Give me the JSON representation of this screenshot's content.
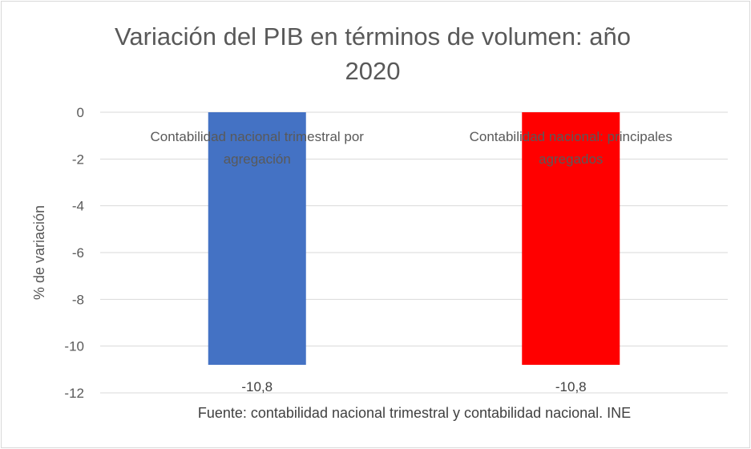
{
  "chart_data": {
    "type": "bar",
    "title": "Variación del PIB en términos de volumen: año 2020",
    "title_lines": [
      "Variación del PIB en términos de volumen: año",
      "2020"
    ],
    "ylabel": "% de variación",
    "xlabel": "",
    "categories": [
      [
        "Contabilidad nacional trimestral por",
        "agregación"
      ],
      [
        "Contabilidad nacional: principales",
        "agregados"
      ]
    ],
    "values": [
      -10.8,
      -10.8
    ],
    "data_labels": [
      "-10,8",
      "-10,8"
    ],
    "colors": [
      "#4472c4",
      "#ff0000"
    ],
    "ylim": [
      -12,
      0
    ],
    "yticks": [
      0,
      -2,
      -4,
      -6,
      -8,
      -10,
      -12
    ],
    "grid": true,
    "legend": "none",
    "source": "Fuente: contabilidad nacional trimestral y contabilidad nacional. INE"
  }
}
